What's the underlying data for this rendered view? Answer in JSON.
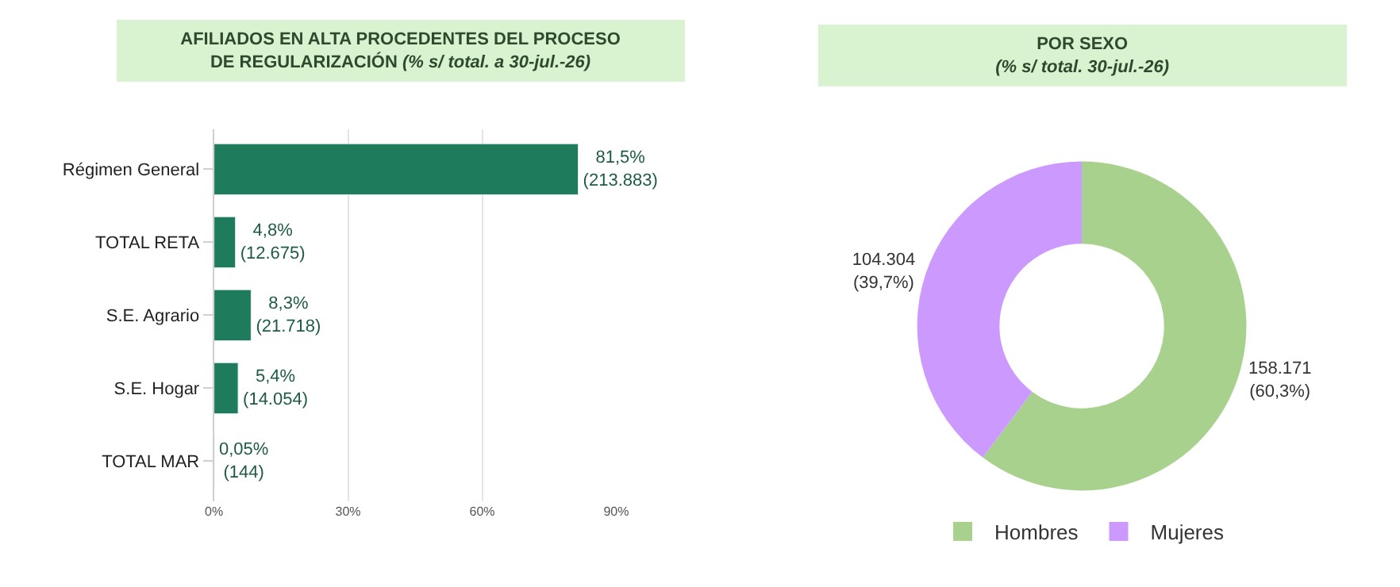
{
  "chart_data": [
    {
      "type": "bar",
      "orientation": "horizontal",
      "title": "AFILIADOS EN ALTA PROCEDENTES DEL PROCESO DE REGULARIZACIÓN",
      "subtitle": "(% s/ total. a 30-jul.-26)",
      "categories": [
        "Régimen General",
        "TOTAL RETA",
        "S.E. Agrario",
        "S.E. Hogar",
        "TOTAL MAR"
      ],
      "values": [
        81.5,
        4.8,
        8.3,
        5.4,
        0.05
      ],
      "value_labels": [
        "81,5%\n(213.883)",
        "4,8%\n(12.675)",
        "8,3%\n(21.718)",
        "5,4%\n(14.054)",
        "0,05%\n(144)"
      ],
      "color": "#1e7b5c",
      "xlim": [
        0,
        90
      ],
      "xticks": [
        {
          "value": 0,
          "label": "0%"
        },
        {
          "value": 30,
          "label": "30%"
        },
        {
          "value": 60,
          "label": "60%"
        },
        {
          "value": 90,
          "label": "90%"
        }
      ],
      "grid": "x",
      "legend": false
    },
    {
      "type": "donut",
      "title": "POR SEXO",
      "subtitle": "(% s/ total. 30-jul.-26)",
      "categories": [
        "Hombres",
        "Mujeres"
      ],
      "values": [
        158171,
        104304
      ],
      "value_labels": [
        "158.171\n(60,3%)",
        "104.304\n(39,7%)"
      ],
      "colors": [
        "#a9d18e",
        "#cc99ff"
      ],
      "legend": "bottom"
    }
  ]
}
